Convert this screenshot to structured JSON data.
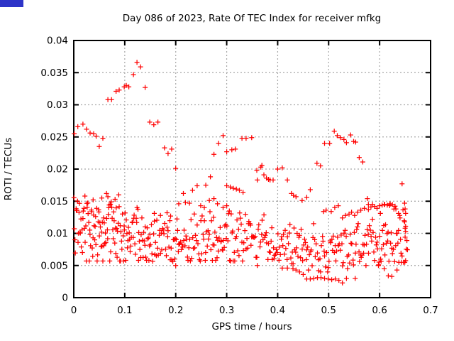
{
  "page": {
    "background": "#ffffff"
  },
  "corner_badge": {
    "color": "#2e34c8"
  },
  "chart_data": {
    "type": "scatter",
    "title": "Day 086 of 2023, Rate Of TEC Index for receiver mfkg",
    "xlabel": "GPS time / hours",
    "ylabel": "ROTI / TECUs",
    "xlim": [
      0,
      0.7
    ],
    "ylim": [
      0,
      0.04
    ],
    "xticks": [
      0,
      0.1,
      0.2,
      0.3,
      0.4,
      0.5,
      0.6,
      0.7
    ],
    "yticks": [
      0,
      0.005,
      0.01,
      0.015,
      0.02,
      0.025,
      0.03,
      0.035,
      0.04
    ],
    "xtick_labels": [
      "0",
      "0.1",
      "0.2",
      "0.3",
      "0.4",
      "0.5",
      "0.6",
      "0.7"
    ],
    "ytick_labels": [
      "0",
      "0.005",
      "0.01",
      "0.015",
      "0.02",
      "0.025",
      "0.03",
      "0.035",
      "0.04"
    ],
    "grid": {
      "show": true,
      "style": "dotted",
      "color": "#a8a8a8"
    },
    "legend": "none",
    "axis_color": "#000000",
    "marker": {
      "shape": "plus",
      "color": "#ff0000",
      "size": 7
    },
    "series": [
      {
        "name": "ROTI",
        "points": [
          [
            0.001,
            0.0255
          ],
          [
            0.008,
            0.0266
          ],
          [
            0.018,
            0.027
          ],
          [
            0.025,
            0.0262
          ],
          [
            0.032,
            0.0256
          ],
          [
            0.039,
            0.0255
          ],
          [
            0.044,
            0.0251
          ],
          [
            0.05,
            0.0235
          ],
          [
            0.057,
            0.0248
          ],
          [
            0.067,
            0.0308
          ],
          [
            0.074,
            0.0308
          ],
          [
            0.083,
            0.0321
          ],
          [
            0.089,
            0.0323
          ],
          [
            0.099,
            0.0328
          ],
          [
            0.103,
            0.033
          ],
          [
            0.108,
            0.0328
          ],
          [
            0.117,
            0.0347
          ],
          [
            0.124,
            0.0366
          ],
          [
            0.131,
            0.0359
          ],
          [
            0.14,
            0.0327
          ],
          [
            0.149,
            0.0273
          ],
          [
            0.157,
            0.0269
          ],
          [
            0.165,
            0.0273
          ],
          [
            0.178,
            0.0233
          ],
          [
            0.185,
            0.0224
          ],
          [
            0.192,
            0.0231
          ],
          [
            0.2,
            0.0201
          ],
          [
            0.206,
            0.0146
          ],
          [
            0.215,
            0.0162
          ],
          [
            0.219,
            0.0148
          ],
          [
            0.227,
            0.0147
          ],
          [
            0.233,
            0.0167
          ],
          [
            0.242,
            0.0174
          ],
          [
            0.249,
            0.0143
          ],
          [
            0.256,
            0.014
          ],
          [
            0.259,
            0.0175
          ],
          [
            0.266,
            0.0151
          ],
          [
            0.268,
            0.0188
          ],
          [
            0.275,
            0.0154
          ],
          [
            0.282,
            0.0146
          ],
          [
            0.293,
            0.014
          ],
          [
            0.3,
            0.0143
          ],
          [
            0.275,
            0.0223
          ],
          [
            0.284,
            0.024
          ],
          [
            0.293,
            0.0252
          ],
          [
            0.3,
            0.0227
          ],
          [
            0.31,
            0.023
          ],
          [
            0.317,
            0.0231
          ],
          [
            0.33,
            0.0248
          ],
          [
            0.338,
            0.0248
          ],
          [
            0.349,
            0.0249
          ],
          [
            0.3,
            0.0174
          ],
          [
            0.307,
            0.0172
          ],
          [
            0.313,
            0.017
          ],
          [
            0.319,
            0.0169
          ],
          [
            0.325,
            0.0167
          ],
          [
            0.332,
            0.0164
          ],
          [
            0.359,
            0.0198
          ],
          [
            0.36,
            0.0183
          ],
          [
            0.367,
            0.0203
          ],
          [
            0.369,
            0.0206
          ],
          [
            0.373,
            0.0191
          ],
          [
            0.378,
            0.0186
          ],
          [
            0.382,
            0.0184
          ],
          [
            0.385,
            0.0183
          ],
          [
            0.391,
            0.0183
          ],
          [
            0.4,
            0.02
          ],
          [
            0.409,
            0.0202
          ],
          [
            0.419,
            0.0183
          ],
          [
            0.427,
            0.0162
          ],
          [
            0.431,
            0.0159
          ],
          [
            0.436,
            0.0157
          ],
          [
            0.448,
            0.0151
          ],
          [
            0.457,
            0.0156
          ],
          [
            0.464,
            0.0168
          ],
          [
            0.477,
            0.0209
          ],
          [
            0.484,
            0.0205
          ],
          [
            0.492,
            0.024
          ],
          [
            0.502,
            0.024
          ],
          [
            0.511,
            0.0259
          ],
          [
            0.517,
            0.0252
          ],
          [
            0.523,
            0.0249
          ],
          [
            0.53,
            0.0246
          ],
          [
            0.535,
            0.0241
          ],
          [
            0.543,
            0.0253
          ],
          [
            0.549,
            0.0243
          ],
          [
            0.553,
            0.0242
          ],
          [
            0.56,
            0.0218
          ],
          [
            0.567,
            0.0211
          ],
          [
            0.576,
            0.0154
          ],
          [
            0.578,
            0.0145
          ],
          [
            0.586,
            0.0145
          ],
          [
            0.644,
            0.0177
          ],
          [
            0.457,
            0.0029
          ],
          [
            0.464,
            0.0029
          ],
          [
            0.471,
            0.003
          ],
          [
            0.478,
            0.0031
          ],
          [
            0.485,
            0.0031
          ],
          [
            0.492,
            0.003
          ],
          [
            0.499,
            0.0029
          ],
          [
            0.506,
            0.0028
          ],
          [
            0.513,
            0.0029
          ],
          [
            0.52,
            0.0027
          ],
          [
            0.527,
            0.0023
          ],
          [
            0.535,
            0.003
          ],
          [
            0.552,
            0.003
          ],
          [
            0.598,
            0.0051
          ],
          [
            0.602,
            0.006
          ],
          [
            0.609,
            0.0045
          ],
          [
            0.617,
            0.0034
          ],
          [
            0.624,
            0.0033
          ],
          [
            0.634,
            0.0043
          ],
          [
            0.409,
            0.0046
          ],
          [
            0.419,
            0.0046
          ],
          [
            0.43,
            0.0045
          ],
          [
            0.436,
            0.0043
          ],
          [
            0.443,
            0.004
          ],
          [
            0.45,
            0.0036
          ],
          [
            0.2,
            0.005
          ],
          [
            0.038,
            0.0152
          ],
          [
            0.055,
            0.0155
          ],
          [
            0.067,
            0.0157
          ],
          [
            0.081,
            0.0153
          ],
          [
            0.158,
            0.0131
          ],
          [
            0.17,
            0.0128
          ],
          [
            0.183,
            0.0132
          ],
          [
            0.19,
            0.0127
          ],
          [
            0.49,
            0.0134
          ],
          [
            0.495,
            0.0136
          ],
          [
            0.505,
            0.0134
          ],
          [
            0.512,
            0.014
          ],
          [
            0.519,
            0.0143
          ],
          [
            0.527,
            0.0124
          ],
          [
            0.533,
            0.0128
          ],
          [
            0.54,
            0.013
          ],
          [
            0.545,
            0.0133
          ],
          [
            0.551,
            0.0128
          ],
          [
            0.557,
            0.0133
          ],
          [
            0.563,
            0.0136
          ],
          [
            0.57,
            0.0139
          ],
          [
            0.578,
            0.0137
          ],
          [
            0.583,
            0.0141
          ],
          [
            0.59,
            0.0142
          ],
          [
            0.595,
            0.0139
          ],
          [
            0.6,
            0.0143
          ],
          [
            0.605,
            0.0144
          ],
          [
            0.61,
            0.0145
          ],
          [
            0.615,
            0.0144
          ],
          [
            0.62,
            0.0146
          ],
          [
            0.625,
            0.0145
          ],
          [
            0.632,
            0.0138
          ],
          [
            0.637,
            0.0131
          ],
          [
            0.64,
            0.0124
          ],
          [
            0.649,
            0.0147
          ],
          [
            0.65,
            0.0138
          ],
          [
            0.651,
            0.0131
          ],
          [
            0.649,
            0.0118
          ],
          [
            0.651,
            0.0111
          ],
          [
            0.65,
            0.0108
          ],
          [
            0.651,
            0.0103
          ],
          [
            0.65,
            0.0094
          ]
        ],
        "noise_band": {
          "note": "dense unresolvable scatter band; segments give [t_start, t_end, count, v_mean, v_spread, v_min, v_max]",
          "seed": 20230086,
          "segments": [
            [
              0.0,
              0.05,
              52,
              0.0102,
              0.0042,
              0.0057,
              0.0158
            ],
            [
              0.05,
              0.1,
              52,
              0.0105,
              0.0045,
              0.0057,
              0.0162
            ],
            [
              0.1,
              0.15,
              44,
              0.0094,
              0.0036,
              0.0058,
              0.014
            ],
            [
              0.15,
              0.2,
              36,
              0.0085,
              0.0028,
              0.0056,
              0.0125
            ],
            [
              0.2,
              0.25,
              34,
              0.0089,
              0.003,
              0.0057,
              0.0135
            ],
            [
              0.25,
              0.3,
              36,
              0.0091,
              0.0031,
              0.0058,
              0.0135
            ],
            [
              0.3,
              0.35,
              36,
              0.009,
              0.0032,
              0.0057,
              0.0137
            ],
            [
              0.35,
              0.4,
              32,
              0.0085,
              0.003,
              0.005,
              0.013
            ],
            [
              0.4,
              0.45,
              32,
              0.0079,
              0.0028,
              0.0046,
              0.012
            ],
            [
              0.45,
              0.5,
              30,
              0.0074,
              0.0027,
              0.004,
              0.0115
            ],
            [
              0.5,
              0.55,
              30,
              0.0077,
              0.0027,
              0.0045,
              0.012
            ],
            [
              0.55,
              0.6,
              34,
              0.0084,
              0.0031,
              0.005,
              0.0128
            ],
            [
              0.6,
              0.655,
              44,
              0.0094,
              0.0038,
              0.0055,
              0.0147
            ]
          ]
        }
      }
    ]
  }
}
